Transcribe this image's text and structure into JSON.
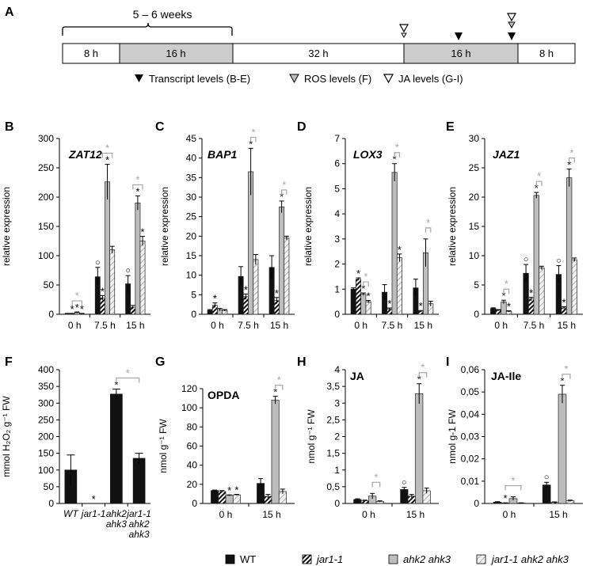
{
  "colors": {
    "wt": "#111111",
    "jar1": "#ffffff",
    "ahk": "#bdbdbd",
    "jarahk": "#eeeeee",
    "sig_gray": "#a6a6a6",
    "seg_gray": "#cccccc"
  },
  "timeline": {
    "panel_letter": "A",
    "brace_label": "5 – 6 weeks",
    "segments": [
      {
        "label": "8 h",
        "shade": "white"
      },
      {
        "label": "16 h",
        "shade": "gray"
      },
      {
        "label": "32 h",
        "shade": "white"
      },
      {
        "label": "16 h",
        "shade": "gray"
      },
      {
        "label": "8 h",
        "shade": "white"
      }
    ],
    "legend": {
      "transcript": "Transcript levels (B-E)",
      "ros": "ROS levels (F)",
      "ja": "JA levels (G-I)"
    }
  },
  "legend": {
    "wt": "WT",
    "jar1": "jar1-1",
    "ahk": "ahk2 ahk3",
    "jarahk": "jar1-1 ahk2 ahk3"
  },
  "chart_data": [
    {
      "id": "B",
      "type": "bar",
      "letter": "B",
      "title": "ZAT12",
      "ylabel": "relative expression",
      "yticks": [
        "0",
        "50",
        "100",
        "150",
        "200",
        "250",
        "300"
      ],
      "ylim": [
        0,
        300
      ],
      "categories": [
        "0 h",
        "7.5 h",
        "15 h"
      ],
      "series": [
        {
          "name": "WT",
          "values": [
            1,
            64,
            52
          ],
          "errors": [
            0.5,
            16,
            14
          ]
        },
        {
          "name": "jar1-1",
          "values": [
            1,
            28,
            12
          ],
          "errors": [
            0.5,
            4,
            3
          ]
        },
        {
          "name": "ahk2 ahk3",
          "values": [
            3,
            226,
            190
          ],
          "errors": [
            1,
            30,
            12
          ]
        },
        {
          "name": "jar1-1 ahk2 ahk3",
          "values": [
            1,
            110,
            125
          ],
          "errors": [
            0.5,
            6,
            8
          ]
        }
      ],
      "marks": [
        {
          "text": "*",
          "group": 0,
          "bar": 1
        },
        {
          "text": "*",
          "group": 0,
          "bar": 2
        },
        {
          "text": "*",
          "group": 0,
          "bar": 3
        },
        {
          "text": "○",
          "group": 1,
          "bar": 0
        },
        {
          "text": "*",
          "group": 1,
          "bar": 1
        },
        {
          "text": "*",
          "group": 1,
          "bar": 2
        },
        {
          "text": "○",
          "group": 2,
          "bar": 0
        },
        {
          "text": "*",
          "group": 2,
          "bar": 2
        },
        {
          "text": "*",
          "group": 2,
          "bar": 3
        }
      ],
      "brackets": [
        {
          "group": 0,
          "from": 1,
          "to": 3,
          "label": "*"
        },
        {
          "group": 1,
          "from": 1,
          "to": 3,
          "label": "*"
        },
        {
          "group": 2,
          "from": 1,
          "to": 3,
          "label": "*"
        }
      ]
    },
    {
      "id": "C",
      "type": "bar",
      "letter": "C",
      "title": "BAP1",
      "ylabel": "relative expression",
      "yticks": [
        "0",
        "5",
        "10",
        "15",
        "20",
        "25",
        "30",
        "35",
        "40",
        "45"
      ],
      "ylim": [
        0,
        45
      ],
      "categories": [
        "0 h",
        "7.5 h",
        "15 h"
      ],
      "series": [
        {
          "name": "WT",
          "values": [
            1,
            9.7,
            12
          ],
          "errors": [
            0.2,
            2.5,
            3
          ]
        },
        {
          "name": "jar1-1",
          "values": [
            2.3,
            4.5,
            3.5
          ],
          "errors": [
            0.6,
            0.7,
            0.8
          ]
        },
        {
          "name": "ahk2 ahk3",
          "values": [
            1.2,
            36.5,
            27.5
          ],
          "errors": [
            0.3,
            6,
            1.5
          ]
        },
        {
          "name": "jar1-1 ahk2 ahk3",
          "values": [
            1,
            14,
            19.5
          ],
          "errors": [
            0.2,
            1.3,
            0.5
          ]
        }
      ],
      "marks": [
        {
          "text": "*",
          "group": 0,
          "bar": 1
        },
        {
          "text": "*",
          "group": 1,
          "bar": 1
        },
        {
          "text": "*",
          "group": 1,
          "bar": 2
        },
        {
          "text": "*",
          "group": 2,
          "bar": 1
        },
        {
          "text": "*",
          "group": 2,
          "bar": 2
        }
      ],
      "brackets": [
        {
          "group": 1,
          "from": 2,
          "to": 3,
          "label": "*"
        },
        {
          "group": 2,
          "from": 2,
          "to": 3,
          "label": "*"
        }
      ]
    },
    {
      "id": "D",
      "type": "bar",
      "letter": "D",
      "title": "LOX3",
      "ylabel": "relative expression",
      "yticks": [
        "0",
        "1",
        "2",
        "3",
        "4",
        "5",
        "6",
        "7"
      ],
      "ylim": [
        0,
        7
      ],
      "categories": [
        "0 h",
        "7.5 h",
        "15 h"
      ],
      "series": [
        {
          "name": "WT",
          "values": [
            1,
            0.88,
            1.05
          ],
          "errors": [
            0.05,
            0.3,
            0.35
          ]
        },
        {
          "name": "jar1-1",
          "values": [
            1.4,
            0.2,
            0.12
          ],
          "errors": [
            0.05,
            0.05,
            0.03
          ]
        },
        {
          "name": "ahk2 ahk3",
          "values": [
            0.8,
            5.65,
            2.45
          ],
          "errors": [
            0.05,
            0.35,
            0.55
          ]
        },
        {
          "name": "jar1-1 ahk2 ahk3",
          "values": [
            0.5,
            2.25,
            0.42
          ],
          "errors": [
            0.05,
            0.15,
            0.1
          ]
        }
      ],
      "marks": [
        {
          "text": "*",
          "group": 0,
          "bar": 1
        },
        {
          "text": "*",
          "group": 0,
          "bar": 2
        },
        {
          "text": "*",
          "group": 0,
          "bar": 3
        },
        {
          "text": "*",
          "group": 1,
          "bar": 1
        },
        {
          "text": "*",
          "group": 1,
          "bar": 2
        },
        {
          "text": "*",
          "group": 1,
          "bar": 3
        },
        {
          "text": "*",
          "group": 2,
          "bar": 1
        }
      ],
      "brackets": [
        {
          "group": 0,
          "from": 2,
          "to": 3,
          "label": "*"
        },
        {
          "group": 1,
          "from": 2,
          "to": 3,
          "label": "*"
        },
        {
          "group": 2,
          "from": 2,
          "to": 3,
          "label": "*"
        }
      ]
    },
    {
      "id": "E",
      "type": "bar",
      "letter": "E",
      "title": "JAZ1",
      "ylabel": "relative expression",
      "yticks": [
        "0",
        "5",
        "10",
        "15",
        "20",
        "25",
        "30"
      ],
      "ylim": [
        0,
        30
      ],
      "categories": [
        "0 h",
        "7.5 h",
        "15 h"
      ],
      "series": [
        {
          "name": "WT",
          "values": [
            1,
            7,
            6.8
          ],
          "errors": [
            0.1,
            1.5,
            1.5
          ]
        },
        {
          "name": "jar1-1",
          "values": [
            0.7,
            2.6,
            1.1
          ],
          "errors": [
            0.1,
            0.3,
            0.2
          ]
        },
        {
          "name": "ahk2 ahk3",
          "values": [
            2.1,
            20.3,
            23.3
          ],
          "errors": [
            0.3,
            0.5,
            1.5
          ]
        },
        {
          "name": "jar1-1 ahk2 ahk3",
          "values": [
            0.5,
            7.9,
            9.3
          ],
          "errors": [
            0.1,
            0.3,
            0.3
          ]
        }
      ],
      "marks": [
        {
          "text": "*",
          "group": 0,
          "bar": 2
        },
        {
          "text": "*",
          "group": 0,
          "bar": 3
        },
        {
          "text": "○",
          "group": 1,
          "bar": 0
        },
        {
          "text": "*",
          "group": 1,
          "bar": 1
        },
        {
          "text": "*",
          "group": 1,
          "bar": 2
        },
        {
          "text": "○",
          "group": 2,
          "bar": 0
        },
        {
          "text": "*",
          "group": 2,
          "bar": 1
        },
        {
          "text": "*",
          "group": 2,
          "bar": 2
        }
      ],
      "brackets": [
        {
          "group": 0,
          "from": 2,
          "to": 3,
          "label": "*"
        },
        {
          "group": 1,
          "from": 2,
          "to": 3,
          "label": "*"
        },
        {
          "group": 2,
          "from": 2,
          "to": 3,
          "label": "*"
        }
      ]
    },
    {
      "id": "F",
      "type": "bar",
      "letter": "F",
      "title": "",
      "ylabel": "mmol H₂O₂ g⁻¹ FW",
      "yticks": [
        "0",
        "50",
        "100",
        "150",
        "200",
        "250",
        "300",
        "350",
        "400"
      ],
      "ylim": [
        0,
        400
      ],
      "categories": [
        {
          "lines": [
            "WT"
          ]
        },
        {
          "lines": [
            "jar1-1"
          ]
        },
        {
          "lines": [
            "ahk2",
            "ahk3"
          ]
        },
        {
          "lines": [
            "jar1-1",
            "ahk2",
            "ahk3"
          ]
        }
      ],
      "values": [
        100,
        0,
        327,
        135
      ],
      "errors": [
        45,
        0,
        15,
        15
      ],
      "marks": [
        {
          "text": "*",
          "bar": 1
        },
        {
          "text": "*",
          "bar": 2
        }
      ],
      "brackets": [
        {
          "from": 2,
          "to": 3,
          "label": "*"
        }
      ]
    },
    {
      "id": "G",
      "type": "bar",
      "letter": "G",
      "title": "OPDA",
      "ylabel": "nmol g⁻¹ FW",
      "yticks": [
        "0",
        "20",
        "40",
        "60",
        "80",
        "100",
        "120"
      ],
      "ylim": [
        0,
        120
      ],
      "categories": [
        "0 h",
        "15 h"
      ],
      "series": [
        {
          "name": "WT",
          "values": [
            13.5,
            21
          ],
          "errors": [
            0.5,
            5
          ]
        },
        {
          "name": "jar1-1",
          "values": [
            12.5,
            7.5
          ],
          "errors": [
            1,
            2
          ]
        },
        {
          "name": "ahk2 ahk3",
          "values": [
            8.5,
            108
          ],
          "errors": [
            0.5,
            4
          ]
        },
        {
          "name": "jar1-1 ahk2 ahk3",
          "values": [
            9,
            12.5
          ],
          "errors": [
            0.5,
            2.5
          ]
        }
      ],
      "marks": [
        {
          "text": "*",
          "group": 0,
          "bar": 2
        },
        {
          "text": "*",
          "group": 0,
          "bar": 3
        },
        {
          "text": "*",
          "group": 1,
          "bar": 2
        }
      ],
      "brackets": [
        {
          "group": 1,
          "from": 2,
          "to": 3,
          "label": "*"
        }
      ]
    },
    {
      "id": "H",
      "type": "bar",
      "letter": "H",
      "title": "JA",
      "ylabel": "nmol g⁻¹ FW",
      "yticks": [
        "0",
        "0,5",
        "1",
        "1,5",
        "2",
        "2,5",
        "3",
        "3,5",
        "4"
      ],
      "ylim": [
        0,
        4
      ],
      "categories": [
        "0 h",
        "15 h"
      ],
      "series": [
        {
          "name": "WT",
          "values": [
            0.12,
            0.42
          ],
          "errors": [
            0.02,
            0.06
          ]
        },
        {
          "name": "jar1-1",
          "values": [
            0.08,
            0.22
          ],
          "errors": [
            0.02,
            0.05
          ]
        },
        {
          "name": "ahk2 ahk3",
          "values": [
            0.22,
            3.28
          ],
          "errors": [
            0.08,
            0.3
          ]
        },
        {
          "name": "jar1-1 ahk2 ahk3",
          "values": [
            0.06,
            0.38
          ],
          "errors": [
            0.02,
            0.08
          ]
        }
      ],
      "marks": [
        {
          "text": "○",
          "group": 1,
          "bar": 0
        },
        {
          "text": "*",
          "group": 1,
          "bar": 2
        }
      ],
      "brackets": [
        {
          "group": 0,
          "from": 2,
          "to": 3,
          "label": "*"
        },
        {
          "group": 1,
          "from": 2,
          "to": 3,
          "label": "*"
        }
      ]
    },
    {
      "id": "I",
      "type": "bar",
      "letter": "I",
      "title": "JA-Ile",
      "ylabel": "nmol g-1 FW",
      "yticks": [
        "0",
        "0,01",
        "0,02",
        "0,03",
        "0,04",
        "0,05",
        "0,06"
      ],
      "ylim": [
        0,
        0.06
      ],
      "categories": [
        "0 h",
        "15 h"
      ],
      "series": [
        {
          "name": "WT",
          "values": [
            0.0006,
            0.0083
          ],
          "errors": [
            0.0002,
            0.0012
          ]
        },
        {
          "name": "jar1-1",
          "values": [
            0.0002,
            0.0005
          ],
          "errors": [
            0.0001,
            0.0002
          ]
        },
        {
          "name": "ahk2 ahk3",
          "values": [
            0.0022,
            0.049
          ],
          "errors": [
            0.0008,
            0.004
          ]
        },
        {
          "name": "jar1-1 ahk2 ahk3",
          "values": [
            0.0002,
            0.0012
          ],
          "errors": [
            0.0001,
            0.0003
          ]
        }
      ],
      "marks": [
        {
          "text": "*",
          "group": 0,
          "bar": 1
        },
        {
          "text": "○",
          "group": 1,
          "bar": 0
        },
        {
          "text": "*",
          "group": 1,
          "bar": 2
        }
      ],
      "brackets": [
        {
          "group": 0,
          "from": 1,
          "to": 3,
          "label": "*"
        },
        {
          "group": 1,
          "from": 2,
          "to": 3,
          "label": "*"
        }
      ]
    }
  ]
}
